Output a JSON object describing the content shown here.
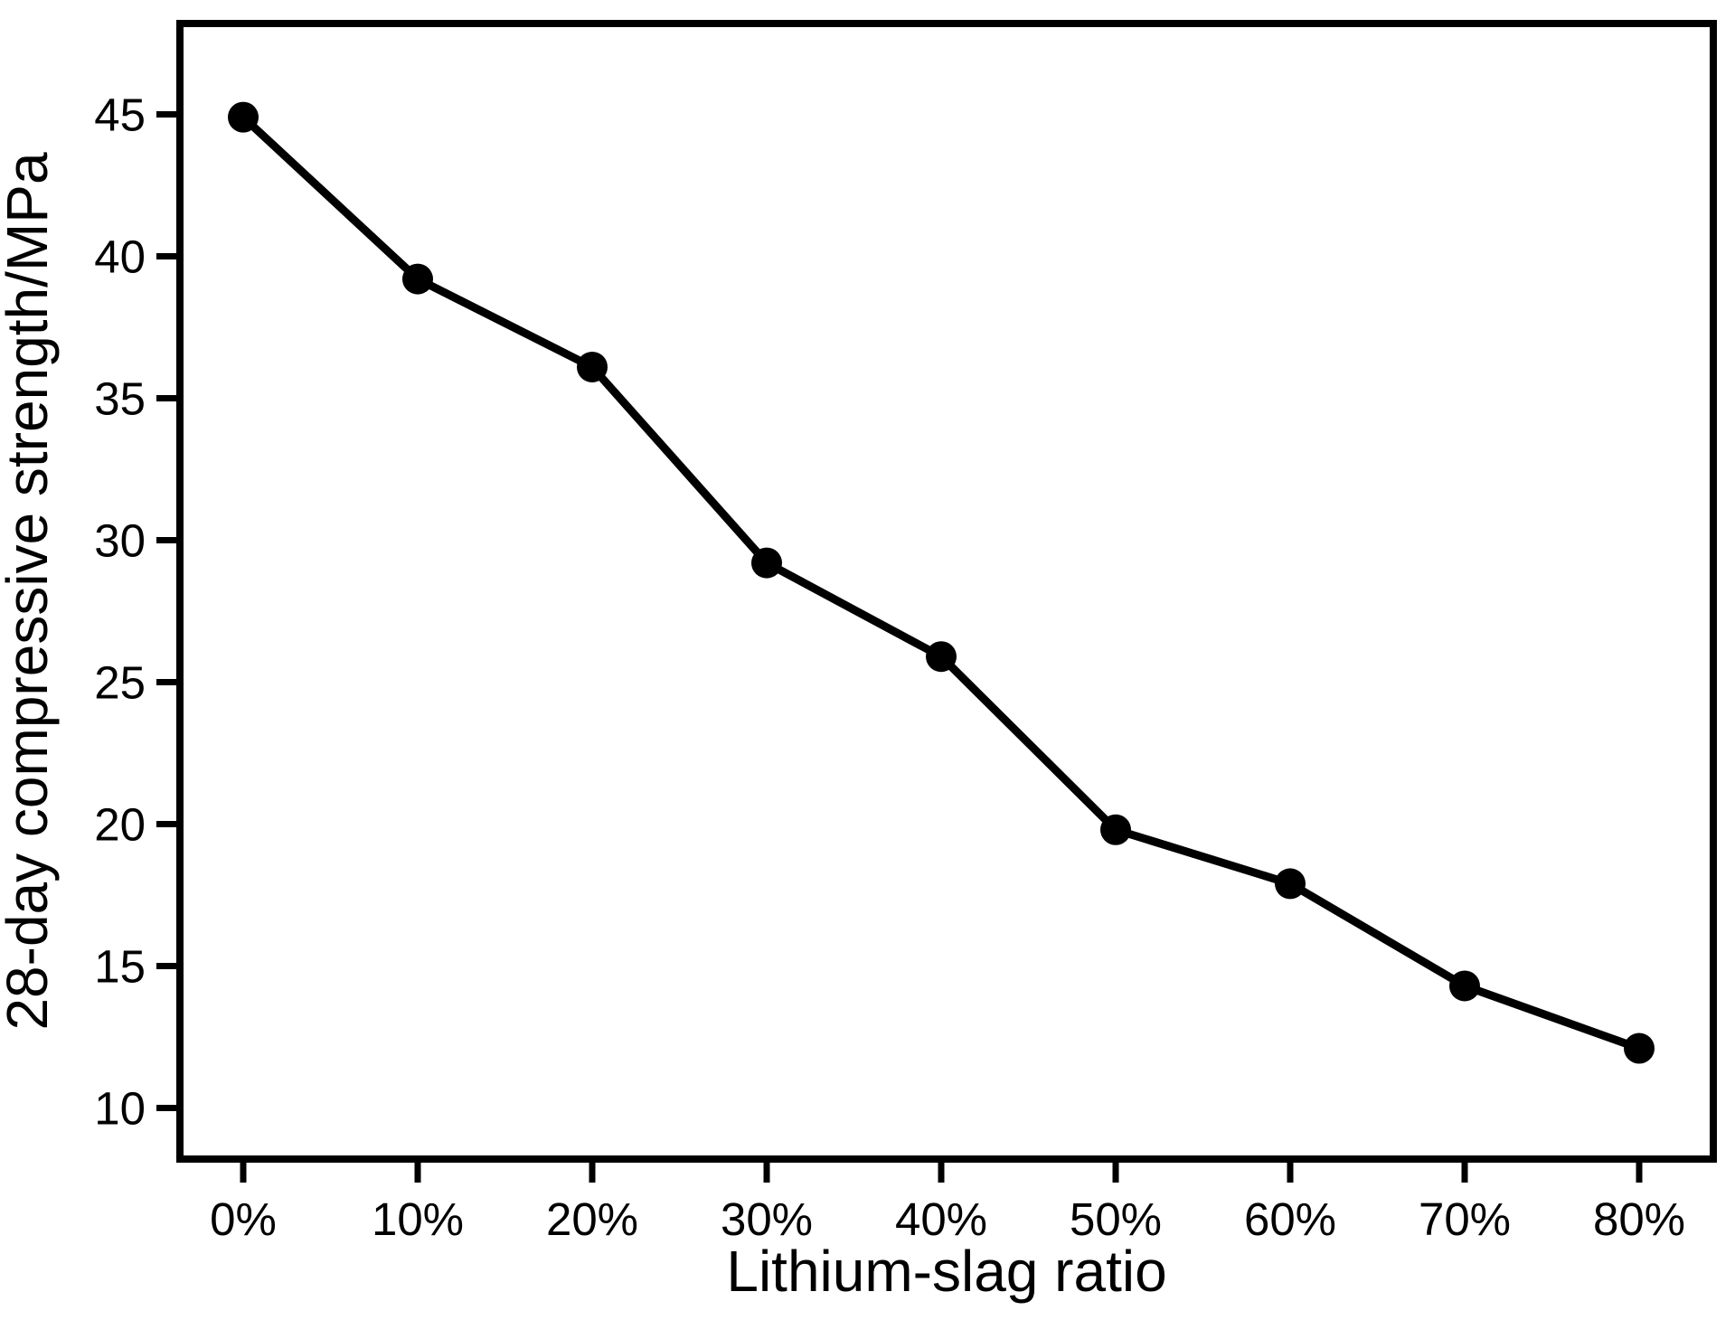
{
  "chart_data": {
    "type": "line",
    "title": "",
    "xlabel": "Lithium-slag ratio",
    "ylabel": "28-day compressive strength/MPa",
    "categories": [
      "0%",
      "10%",
      "20%",
      "30%",
      "40%",
      "50%",
      "60%",
      "70%",
      "80%"
    ],
    "series": [
      {
        "name": "28-day compressive strength",
        "values": [
          44.9,
          39.2,
          36.1,
          29.2,
          25.9,
          19.8,
          17.9,
          14.3,
          12.1
        ]
      }
    ],
    "yticks": [
      10,
      15,
      20,
      25,
      30,
      35,
      40,
      45
    ],
    "ylim": [
      8.2,
      48.2
    ],
    "grid": false,
    "legend_position": "none",
    "line_color": "#000000",
    "marker_style": "filled-circle",
    "background_color": "#ffffff"
  }
}
